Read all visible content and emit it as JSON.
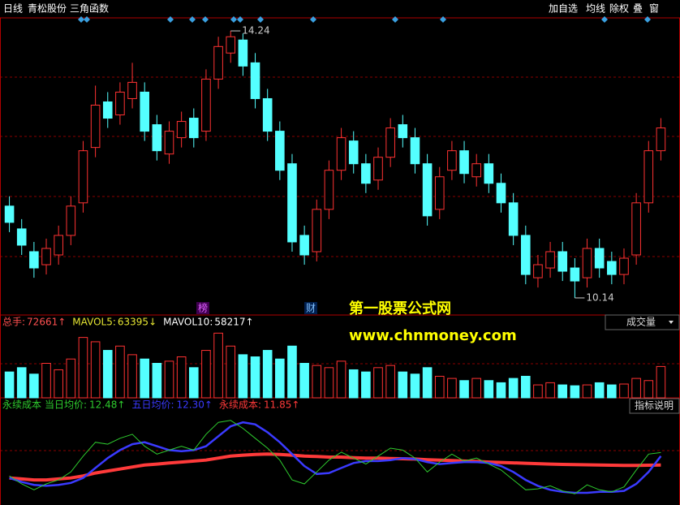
{
  "toolbar": {
    "left": [
      "日线",
      "青松股份",
      "三角函数"
    ],
    "right": [
      "加自选",
      "均线",
      "除权",
      "叠",
      "窗"
    ]
  },
  "watermark": {
    "name": "第一股票公式网",
    "url": "www.chnmoney.com"
  },
  "markers": [
    "榜",
    "财"
  ],
  "chart_data": {
    "type": "candlestick",
    "up_color": "#ff3232",
    "down_color": "#54ffff",
    "ylim": [
      9.89,
      14.44
    ],
    "open": [
      11.55,
      11.2,
      10.85,
      10.65,
      10.8,
      11.1,
      11.6,
      12.45,
      13.15,
      12.95,
      13.2,
      13.3,
      12.8,
      12.35,
      12.6,
      12.9,
      12.7,
      13.5,
      13.9,
      14.1,
      13.75,
      13.2,
      12.7,
      12.2,
      11.1,
      10.85,
      11.5,
      12.1,
      12.55,
      12.2,
      11.95,
      12.3,
      12.8,
      12.6,
      12.2,
      11.5,
      12.1,
      12.4,
      12.0,
      12.2,
      11.9,
      11.6,
      11.1,
      10.45,
      10.6,
      10.85,
      10.6,
      10.45,
      10.9,
      10.7,
      10.5,
      10.8,
      11.6,
      12.4
    ],
    "high": [
      11.7,
      11.35,
      11.0,
      11.05,
      11.25,
      11.7,
      12.55,
      13.4,
      13.3,
      13.45,
      13.75,
      13.45,
      12.95,
      12.85,
      13.0,
      13.05,
      13.65,
      14.15,
      14.24,
      14.2,
      13.9,
      13.35,
      12.85,
      12.35,
      11.25,
      11.65,
      12.25,
      12.75,
      12.7,
      12.35,
      12.45,
      12.9,
      12.95,
      12.75,
      12.35,
      12.15,
      12.55,
      12.55,
      12.35,
      12.35,
      12.05,
      11.75,
      11.25,
      10.8,
      11.0,
      11.0,
      10.75,
      11.05,
      11.05,
      10.85,
      10.9,
      11.75,
      12.55,
      12.9
    ],
    "low": [
      11.15,
      10.8,
      10.45,
      10.5,
      10.65,
      10.95,
      11.45,
      12.3,
      12.75,
      12.8,
      13.05,
      12.55,
      12.25,
      12.2,
      12.45,
      12.45,
      12.55,
      13.35,
      13.75,
      13.55,
      13.05,
      12.55,
      11.95,
      10.85,
      10.65,
      10.7,
      11.35,
      11.95,
      12.05,
      11.75,
      11.8,
      12.15,
      12.45,
      12.05,
      11.25,
      11.35,
      11.95,
      11.9,
      11.85,
      11.75,
      11.45,
      10.95,
      10.35,
      10.3,
      10.45,
      10.4,
      10.14,
      10.3,
      10.45,
      10.35,
      10.35,
      10.65,
      11.45,
      12.25
    ],
    "close": [
      11.3,
      10.95,
      10.6,
      10.9,
      11.1,
      11.55,
      12.4,
      13.1,
      12.9,
      13.3,
      13.45,
      12.7,
      12.4,
      12.7,
      12.85,
      12.6,
      13.5,
      14.0,
      14.15,
      13.7,
      13.2,
      12.7,
      12.1,
      11.0,
      10.8,
      11.5,
      12.1,
      12.6,
      12.2,
      11.9,
      12.3,
      12.75,
      12.6,
      12.2,
      11.4,
      12.0,
      12.4,
      12.05,
      12.2,
      11.9,
      11.6,
      11.1,
      10.5,
      10.65,
      10.85,
      10.55,
      10.4,
      10.9,
      10.6,
      10.5,
      10.75,
      11.6,
      12.4,
      12.75
    ],
    "volume": {
      "selector": "成交量",
      "ylim": [
        0,
        160000
      ],
      "readouts": [
        {
          "label": "总手:",
          "text": "72661↑",
          "color": "#ff5050"
        },
        {
          "label": "MAVOL5:",
          "text": "63395↓",
          "color": "#e6e632"
        },
        {
          "label": "MAVOL10:",
          "text": "58217↑",
          "color": "#ffffff"
        }
      ],
      "values": [
        60000,
        70000,
        55000,
        80000,
        65000,
        90000,
        140000,
        130000,
        110000,
        120000,
        100000,
        90000,
        80000,
        85000,
        95000,
        70000,
        110000,
        150000,
        120000,
        100000,
        95000,
        110000,
        90000,
        120000,
        80000,
        75000,
        70000,
        85000,
        65000,
        60000,
        70000,
        75000,
        60000,
        55000,
        70000,
        50000,
        45000,
        40000,
        45000,
        40000,
        35000,
        45000,
        50000,
        30000,
        35000,
        30000,
        28000,
        30000,
        35000,
        30000,
        32000,
        45000,
        40000,
        72661
      ]
    },
    "indicator": {
      "title": "永续成本",
      "help": "指标说明",
      "ylim": [
        10,
        14.5
      ],
      "series": [
        {
          "name": "当日均价:",
          "readout": "12.48↑",
          "color": "#2ecc2e",
          "width": 1,
          "values": [
            11.3,
            10.9,
            10.6,
            10.9,
            11.1,
            11.5,
            12.3,
            13.0,
            12.9,
            13.2,
            13.4,
            12.8,
            12.4,
            12.6,
            12.8,
            12.6,
            13.4,
            14.0,
            14.1,
            13.7,
            13.2,
            12.7,
            12.1,
            11.1,
            10.9,
            11.5,
            12.1,
            12.5,
            12.2,
            11.9,
            12.3,
            12.7,
            12.6,
            12.2,
            11.5,
            12.0,
            12.4,
            12.05,
            12.2,
            11.9,
            11.6,
            11.1,
            10.6,
            10.65,
            10.8,
            10.55,
            10.4,
            10.85,
            10.6,
            10.5,
            10.75,
            11.6,
            12.4,
            12.48
          ]
        },
        {
          "name": "五日均价:",
          "readout": "12.30↑",
          "color": "#3a3aff",
          "width": 2.5,
          "values": [
            11.2,
            11.0,
            10.85,
            10.8,
            10.85,
            10.95,
            11.2,
            11.7,
            12.2,
            12.6,
            12.9,
            13.0,
            12.8,
            12.6,
            12.55,
            12.6,
            12.8,
            13.3,
            13.8,
            14.0,
            13.9,
            13.5,
            13.0,
            12.4,
            11.8,
            11.4,
            11.45,
            11.7,
            11.95,
            12.05,
            12.05,
            12.1,
            12.2,
            12.15,
            12.0,
            11.9,
            11.95,
            12.0,
            12.0,
            11.95,
            11.8,
            11.5,
            11.1,
            10.8,
            10.6,
            10.5,
            10.45,
            10.45,
            10.5,
            10.5,
            10.55,
            10.9,
            11.5,
            12.3
          ]
        },
        {
          "name": "永续成本:",
          "readout": "11.85↑",
          "color": "#ff3a3a",
          "width": 4,
          "values": [
            11.2,
            11.15,
            11.1,
            11.1,
            11.15,
            11.2,
            11.3,
            11.45,
            11.55,
            11.65,
            11.75,
            11.85,
            11.9,
            11.95,
            12.0,
            12.05,
            12.1,
            12.2,
            12.3,
            12.35,
            12.38,
            12.4,
            12.38,
            12.35,
            12.3,
            12.28,
            12.25,
            12.25,
            12.22,
            12.2,
            12.2,
            12.18,
            12.17,
            12.15,
            12.12,
            12.1,
            12.08,
            12.05,
            12.03,
            12.0,
            11.98,
            11.96,
            11.94,
            11.92,
            11.9,
            11.88,
            11.87,
            11.86,
            11.85,
            11.84,
            11.83,
            11.83,
            11.84,
            11.85
          ]
        }
      ]
    }
  }
}
